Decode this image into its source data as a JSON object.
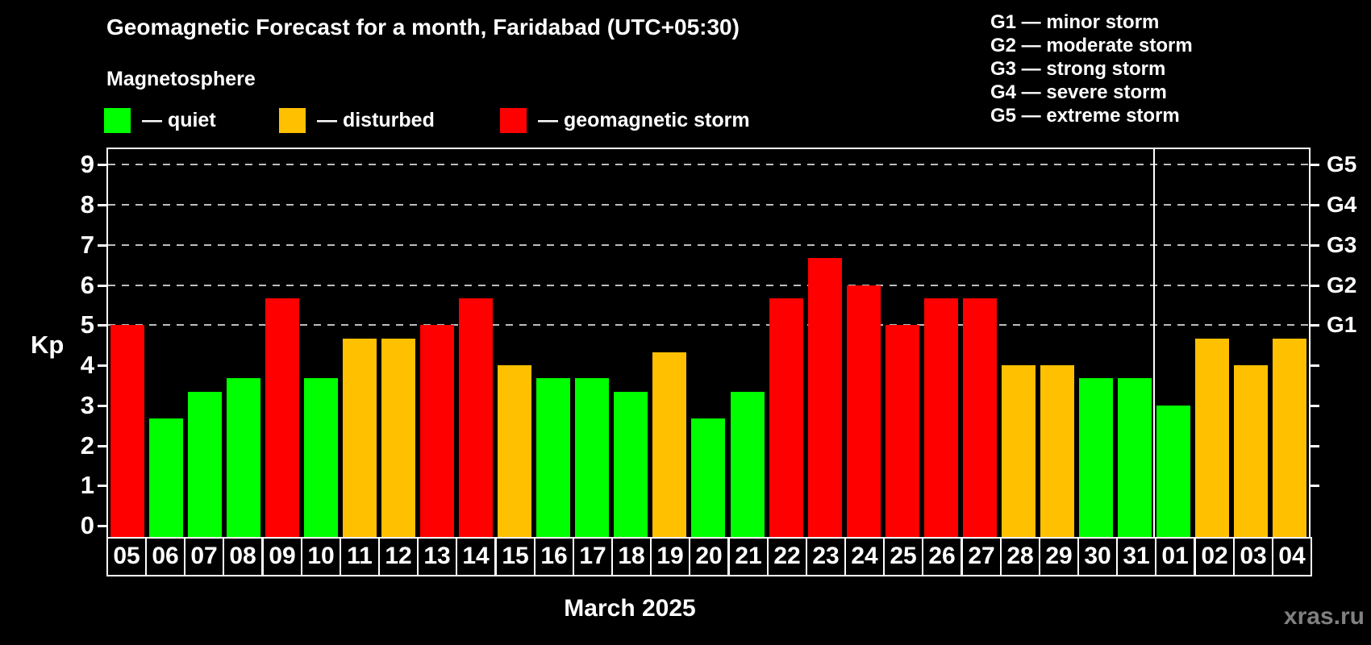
{
  "title": "Geomagnetic Forecast for a month, Faridabad (UTC+05:30)",
  "subtitle": "Magnetosphere",
  "legend": [
    {
      "key": "quiet",
      "label": "— quiet",
      "color": "#00ff00"
    },
    {
      "key": "disturbed",
      "label": "— disturbed",
      "color": "#ffc000"
    },
    {
      "key": "storm",
      "label": "— geomagnetic storm",
      "color": "#ff0000"
    }
  ],
  "g_legend": [
    "G1 — minor storm",
    "G2 — moderate storm",
    "G3 — strong storm",
    "G4 — severe storm",
    "G5 — extreme storm"
  ],
  "axis": {
    "kp_label": "Kp",
    "y_ticks": [
      0,
      1,
      2,
      3,
      4,
      5,
      6,
      7,
      8,
      9
    ],
    "right_labels": [
      {
        "level": 5,
        "label": "G1"
      },
      {
        "level": 6,
        "label": "G2"
      },
      {
        "level": 7,
        "label": "G3"
      },
      {
        "level": 8,
        "label": "G4"
      },
      {
        "level": 9,
        "label": "G5"
      }
    ]
  },
  "x_axis_label": "March 2025",
  "watermark": "xras.ru",
  "chart_data": {
    "type": "bar",
    "title": "Geomagnetic Forecast for a month, Faridabad (UTC+05:30)",
    "subtitle": "Magnetosphere",
    "ylabel": "Kp",
    "ylim": [
      0,
      9.4
    ],
    "grid": "horizontal dashed lines at storm levels only",
    "gridline_levels": [
      5,
      6,
      7,
      8,
      9
    ],
    "legend_position": "top-left",
    "categories": [
      "05",
      "06",
      "07",
      "08",
      "09",
      "10",
      "11",
      "12",
      "13",
      "14",
      "15",
      "16",
      "17",
      "18",
      "19",
      "20",
      "21",
      "22",
      "23",
      "24",
      "25",
      "26",
      "27",
      "28",
      "29",
      "30",
      "31",
      "01",
      "02",
      "03",
      "04"
    ],
    "values": [
      5,
      2.67,
      3.33,
      3.67,
      5.67,
      3.67,
      4.67,
      4.67,
      5,
      5.67,
      4,
      3.67,
      3.67,
      3.33,
      4.33,
      2.67,
      3.33,
      5.67,
      6.67,
      6,
      5,
      5.67,
      5.67,
      4,
      4,
      3.67,
      3.67,
      3,
      4.67,
      4,
      4.67
    ],
    "statuses": [
      "storm",
      "quiet",
      "quiet",
      "quiet",
      "storm",
      "quiet",
      "disturbed",
      "disturbed",
      "storm",
      "storm",
      "disturbed",
      "quiet",
      "quiet",
      "quiet",
      "disturbed",
      "quiet",
      "quiet",
      "storm",
      "storm",
      "storm",
      "storm",
      "storm",
      "storm",
      "disturbed",
      "disturbed",
      "quiet",
      "quiet",
      "quiet",
      "disturbed",
      "disturbed",
      "disturbed"
    ],
    "month_separator_after_category": "31"
  }
}
